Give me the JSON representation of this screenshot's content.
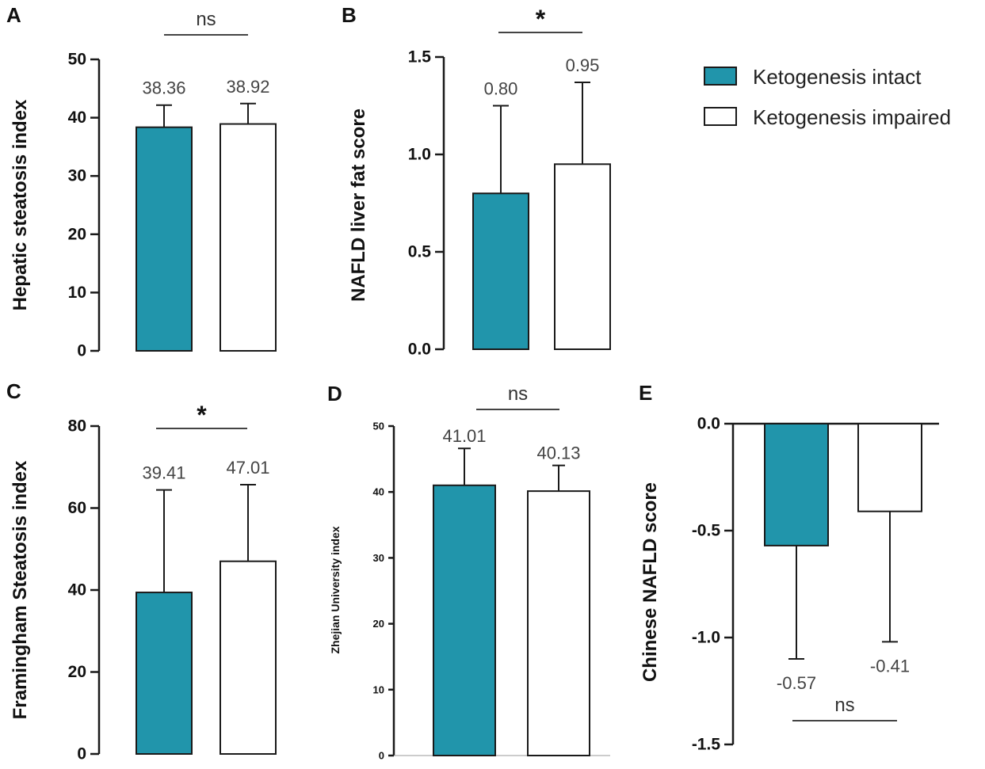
{
  "colors": {
    "intact": "#2195ab",
    "impaired": "#ffffff",
    "stroke": "#1a1a1a",
    "bracket": "#444444"
  },
  "legend": {
    "items": [
      {
        "label": "Ketogenesis intact",
        "color": "#2195ab"
      },
      {
        "label": "Ketogenesis impaired",
        "color": "#ffffff"
      }
    ]
  },
  "chart_data": [
    {
      "id": "A",
      "type": "bar",
      "panel_label": "A",
      "ylabel": "Hepatic steatosis index",
      "ylim": [
        0,
        50
      ],
      "yticks": [
        0,
        10,
        20,
        30,
        40,
        50
      ],
      "yticklabels": [
        "0",
        "10",
        "20",
        "30",
        "40",
        "50"
      ],
      "categories": [
        "Ketogenesis intact",
        "Ketogenesis impaired"
      ],
      "values": [
        38.36,
        38.92
      ],
      "errors": [
        3.8,
        3.5
      ],
      "data_labels": [
        "38.36",
        "38.92"
      ],
      "significance": "ns"
    },
    {
      "id": "B",
      "type": "bar",
      "panel_label": "B",
      "ylabel": "NAFLD liver fat score",
      "ylim": [
        0,
        1.5
      ],
      "yticks": [
        0,
        0.5,
        1.0,
        1.5
      ],
      "yticklabels": [
        "0.0",
        "0.5",
        "1.0",
        "1.5"
      ],
      "categories": [
        "Ketogenesis intact",
        "Ketogenesis impaired"
      ],
      "values": [
        0.8,
        0.95
      ],
      "errors": [
        0.45,
        0.42
      ],
      "data_labels": [
        "0.80",
        "0.95"
      ],
      "significance": "*"
    },
    {
      "id": "C",
      "type": "bar",
      "panel_label": "C",
      "ylabel": "Framingham Steatosis index",
      "ylim": [
        0,
        80
      ],
      "yticks": [
        0,
        20,
        40,
        60,
        80
      ],
      "yticklabels": [
        "0",
        "20",
        "40",
        "60",
        "80"
      ],
      "categories": [
        "Ketogenesis intact",
        "Ketogenesis impaired"
      ],
      "values": [
        39.41,
        47.01
      ],
      "errors": [
        25.0,
        18.7
      ],
      "data_labels": [
        "39.41",
        "47.01"
      ],
      "significance": "*"
    },
    {
      "id": "D",
      "type": "bar",
      "panel_label": "D",
      "ylabel": "Zhejian  University index",
      "ylim": [
        0,
        50
      ],
      "yticks": [
        0,
        10,
        20,
        30,
        40,
        50
      ],
      "yticklabels": [
        "0",
        "10",
        "20",
        "30",
        "40",
        "50"
      ],
      "categories": [
        "Ketogenesis intact",
        "Ketogenesis impaired"
      ],
      "values": [
        41.01,
        40.13
      ],
      "errors": [
        5.6,
        3.9
      ],
      "data_labels": [
        "41.01",
        "40.13"
      ],
      "significance": "ns"
    },
    {
      "id": "E",
      "type": "bar",
      "panel_label": "E",
      "ylabel": "Chinese NAFLD score",
      "ylim": [
        -1.5,
        0
      ],
      "yticks": [
        0,
        -0.5,
        -1.0,
        -1.5
      ],
      "yticklabels": [
        "0.0",
        "-0.5",
        "-1.0",
        "-1.5"
      ],
      "categories": [
        "Ketogenesis intact",
        "Ketogenesis impaired"
      ],
      "values": [
        -0.57,
        -0.41
      ],
      "errors": [
        0.53,
        0.61
      ],
      "data_labels": [
        "-0.57",
        "-0.41"
      ],
      "significance": "ns"
    }
  ]
}
